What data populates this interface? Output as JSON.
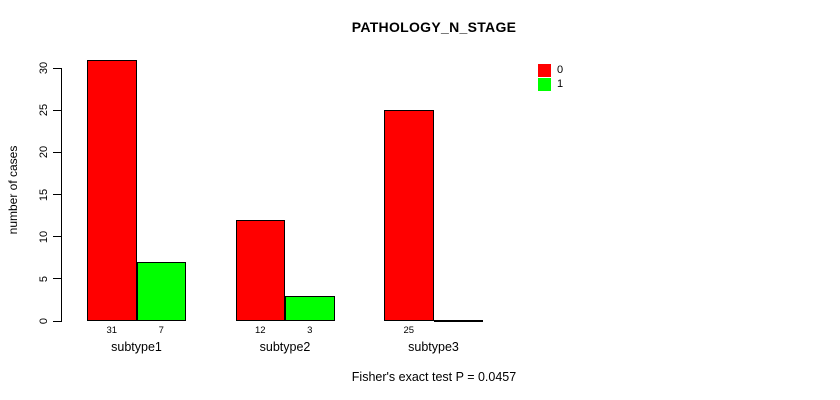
{
  "title": "PATHOLOGY_N_STAGE",
  "annotation": "Fisher's exact test P = 0.0457",
  "y_axis": {
    "label": "number of cases",
    "tick_labels": [
      "0",
      "5",
      "10",
      "15",
      "20",
      "25",
      "30"
    ]
  },
  "legend": {
    "items": [
      {
        "label": "0",
        "color": "#FF0000"
      },
      {
        "label": "1",
        "color": "#00FF00"
      }
    ]
  },
  "chart_data": {
    "type": "bar",
    "categories": [
      "subtype1",
      "subtype2",
      "subtype3"
    ],
    "series": [
      {
        "name": "0",
        "color": "#FF0000",
        "values": [
          31,
          12,
          25
        ]
      },
      {
        "name": "1",
        "color": "#00FF00",
        "values": [
          7,
          3,
          0
        ]
      }
    ],
    "title": "PATHOLOGY_N_STAGE",
    "xlabel": "",
    "ylabel": "number of cases",
    "ylim": [
      0,
      30
    ],
    "yticks": [
      0,
      5,
      10,
      15,
      20,
      25,
      30
    ],
    "grid": false,
    "legend_position": "top-right",
    "bar_value_labels": [
      [
        "31",
        "7"
      ],
      [
        "12",
        "3"
      ],
      [
        "25",
        ""
      ]
    ],
    "annotation": "Fisher's exact test P = 0.0457"
  },
  "colors": {
    "background": "#FFFFFF",
    "axis": "#000000",
    "text": "#000000",
    "series_0": "#FF0000",
    "series_1": "#00FF00"
  }
}
